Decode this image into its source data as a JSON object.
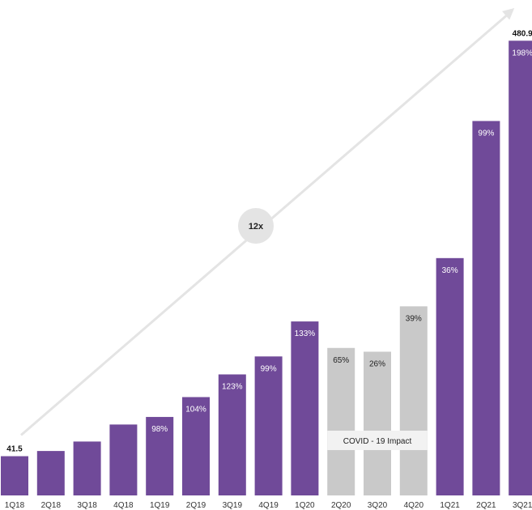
{
  "chart_data": {
    "type": "bar",
    "title": "",
    "xlabel": "",
    "ylabel": "",
    "categories": [
      "1Q18",
      "2Q18",
      "3Q18",
      "4Q18",
      "1Q19",
      "2Q19",
      "3Q19",
      "4Q19",
      "1Q20",
      "2Q20",
      "3Q20",
      "4Q20",
      "1Q21",
      "2Q21",
      "3Q21"
    ],
    "values": [
      41.5,
      47,
      57,
      75,
      83,
      104,
      128,
      147,
      184,
      156,
      152,
      200,
      251,
      396,
      480.9
    ],
    "growth_labels": [
      "",
      "",
      "",
      "",
      "98%",
      "104%",
      "123%",
      "99%",
      "133%",
      "65%",
      "26%",
      "39%",
      "36%",
      "99%",
      "198%"
    ],
    "highlighted": [
      false,
      false,
      false,
      false,
      false,
      false,
      false,
      false,
      false,
      true,
      true,
      true,
      false,
      false,
      false
    ],
    "ylim": [
      0,
      500
    ],
    "grid": false,
    "legend": "none",
    "value_labels": {
      "first": "41.5",
      "last": "480.9"
    },
    "multiplier_label": "12x",
    "annotation": "COVID - 19 Impact",
    "colors": {
      "bar": "#704a99",
      "highlight_bar": "#c9c9c9",
      "label_on_bar": "#ffffff",
      "label_on_highlight": "#222222",
      "arrow": "#e4e4e4",
      "circle": "#e4e4e4",
      "annotation_box": "#f2f2f2"
    }
  }
}
